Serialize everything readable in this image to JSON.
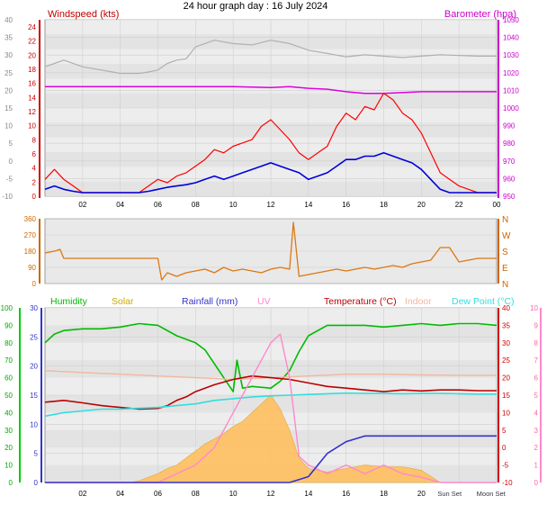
{
  "title": "24 hour graph day : 16 July 2024",
  "x_ticks": [
    "02",
    "04",
    "06",
    "08",
    "10",
    "12",
    "14",
    "16",
    "18",
    "20",
    "22",
    "00"
  ],
  "chart_data": [
    {
      "type": "line",
      "name": "wind-panel",
      "left_label": "Windspeed (kts)",
      "right_label": "Barometer (hpa)",
      "left_ticks_outer": [
        "40",
        "35",
        "30",
        "25",
        "20",
        "15",
        "10",
        "5",
        "0",
        "-5",
        "-10"
      ],
      "left_ticks_inner": [
        "24",
        "22",
        "20",
        "18",
        "16",
        "14",
        "12",
        "10",
        "8",
        "6",
        "4",
        "2",
        "0"
      ],
      "right_ticks": [
        "1050",
        "1040",
        "1030",
        "1020",
        "1010",
        "1000",
        "990",
        "980",
        "970",
        "960",
        "950"
      ],
      "ylim_wind": [
        0,
        25
      ],
      "ylim_baro": [
        947,
        1050
      ],
      "series": [
        {
          "key": "baro",
          "color": "#dd00dd",
          "x": [
            0,
            2,
            6,
            10,
            12,
            13,
            14,
            15,
            16,
            17,
            18,
            20,
            22,
            24
          ],
          "y": [
            1011,
            1011,
            1011,
            1011,
            1010.5,
            1011,
            1010,
            1009.5,
            1008,
            1007,
            1007,
            1008,
            1008,
            1008
          ]
        },
        {
          "key": "temp_grey",
          "color": "#b0b0b0",
          "x": [
            0,
            0.5,
            1,
            2,
            4,
            5,
            5.5,
            6,
            6.5,
            7,
            7.5,
            8,
            9,
            10,
            11,
            12,
            13,
            13.5,
            14,
            15,
            16,
            17,
            18,
            19,
            20,
            21,
            22,
            23,
            24
          ],
          "y": [
            19,
            19.5,
            20,
            19,
            18,
            18,
            18.2,
            18.5,
            19.5,
            20,
            20.2,
            22,
            23,
            22.5,
            22.3,
            23,
            22.5,
            22,
            21.5,
            21,
            20.5,
            20.8,
            20.6,
            20.4,
            20.6,
            20.8,
            20.7,
            20.6,
            20.6
          ]
        },
        {
          "key": "gust",
          "color": "#ff0000",
          "x": [
            0,
            0.5,
            1,
            1.5,
            2,
            3,
            4,
            5,
            5.5,
            6,
            6.5,
            7,
            7.5,
            8,
            8.5,
            9,
            9.5,
            10,
            10.5,
            11,
            11.5,
            12,
            12.5,
            13,
            13.5,
            14,
            14.5,
            15,
            15.5,
            16,
            16.5,
            17,
            17.5,
            18,
            18.5,
            19,
            19.5,
            20,
            20.5,
            21,
            21.5,
            22,
            22.5,
            23,
            24
          ],
          "y": [
            2,
            3.5,
            2,
            1,
            0,
            0,
            0,
            0,
            1,
            2,
            1.5,
            2.5,
            3,
            4,
            5,
            6.5,
            6,
            7,
            7.5,
            8,
            10,
            11,
            9.5,
            8,
            6,
            5,
            6,
            7,
            10,
            12,
            11,
            13,
            12.5,
            15,
            14,
            12,
            11,
            9,
            6,
            3,
            2,
            1,
            0.5,
            0,
            0
          ]
        },
        {
          "key": "wind",
          "color": "#0000dd",
          "x": [
            0,
            0.5,
            1,
            1.5,
            2,
            3,
            4,
            5,
            5.5,
            6,
            6.5,
            7,
            7.5,
            8,
            8.5,
            9,
            9.5,
            10,
            10.5,
            11,
            11.5,
            12,
            12.5,
            13,
            13.5,
            14,
            14.5,
            15,
            15.5,
            16,
            16.5,
            17,
            17.5,
            18,
            18.5,
            19,
            19.5,
            20,
            20.5,
            21,
            21.5,
            22,
            22.5,
            23,
            24
          ],
          "y": [
            0.5,
            1,
            0.5,
            0.2,
            0,
            0,
            0,
            0,
            0.2,
            0.5,
            0.8,
            1,
            1.2,
            1.5,
            2,
            2.5,
            2,
            2.5,
            3,
            3.5,
            4,
            4.5,
            4,
            3.5,
            3,
            2,
            2.5,
            3,
            4,
            5,
            5,
            5.5,
            5.5,
            6,
            5.5,
            5,
            4.5,
            3.5,
            2,
            0.5,
            0,
            0,
            0,
            0,
            0
          ]
        }
      ]
    },
    {
      "type": "line",
      "name": "direction-panel",
      "left_ticks": [
        "360",
        "270",
        "180",
        "90",
        "0"
      ],
      "right_ticks": [
        "N",
        "W",
        "S",
        "E",
        "N"
      ],
      "ylim": [
        0,
        360
      ],
      "series": [
        {
          "key": "dir",
          "color": "#dd7711",
          "x": [
            0,
            0.5,
            0.8,
            1,
            4,
            5,
            6,
            6.2,
            6.5,
            7,
            7.5,
            8,
            8.5,
            9,
            9.5,
            10,
            10.5,
            11,
            11.5,
            12,
            12.5,
            13,
            13.2,
            13.5,
            14,
            14.5,
            15,
            15.5,
            16,
            16.5,
            17,
            17.5,
            18,
            18.5,
            19,
            19.5,
            20,
            20.5,
            21,
            21.5,
            22,
            23,
            24
          ],
          "y": [
            170,
            180,
            190,
            140,
            140,
            140,
            140,
            20,
            60,
            40,
            60,
            70,
            80,
            60,
            90,
            70,
            80,
            70,
            60,
            80,
            90,
            80,
            340,
            40,
            50,
            60,
            70,
            80,
            70,
            80,
            90,
            80,
            90,
            100,
            90,
            110,
            120,
            130,
            200,
            200,
            120,
            140,
            140
          ]
        }
      ]
    },
    {
      "type": "area",
      "name": "environment-panel",
      "legend": [
        {
          "label": "Humidity",
          "color": "#00bb00"
        },
        {
          "label": "Solar",
          "color": "#ccaa00"
        },
        {
          "label": "Rainfall (mm)",
          "color": "#3333cc"
        },
        {
          "label": "UV",
          "color": "#ff88cc"
        },
        {
          "label": "Temperature (°C)",
          "color": "#bb0000"
        },
        {
          "label": "Indoor",
          "color": "#f0b8a0"
        },
        {
          "label": "Dew Point (°C)",
          "color": "#33dddd"
        }
      ],
      "left_ticks_outer": [
        "100",
        "90",
        "80",
        "70",
        "60",
        "50",
        "40",
        "30",
        "20",
        "10",
        "0"
      ],
      "left_ticks_inner": [
        "30",
        "25",
        "20",
        "15",
        "10",
        "5",
        "0"
      ],
      "right_ticks_temp": [
        "40",
        "35",
        "30",
        "25",
        "20",
        "15",
        "10",
        "5",
        "0",
        "-5",
        "-10"
      ],
      "right_ticks_uv": [
        "10",
        "9",
        "8",
        "7",
        "6",
        "5",
        "4",
        "3",
        "2",
        "1",
        "0"
      ],
      "x_annotations": [
        "Sun Set",
        "Moon Set"
      ],
      "ylim_humidity": [
        0,
        100
      ],
      "ylim_temp": [
        -10,
        40
      ],
      "ylim_rain": [
        0,
        30
      ],
      "series": [
        {
          "key": "solar",
          "color": "#ffc060",
          "x": [
            0,
            4.5,
            5,
            5.5,
            6,
            6.5,
            7,
            7.5,
            8,
            8.5,
            9,
            9.5,
            10,
            10.5,
            11,
            11.5,
            12,
            12.5,
            13,
            13.5,
            14,
            14.5,
            15,
            15.5,
            16,
            17,
            18,
            19,
            20,
            21,
            24
          ],
          "y": [
            0,
            0,
            1,
            3,
            5,
            8,
            10,
            14,
            18,
            22,
            25,
            28,
            32,
            35,
            40,
            45,
            50,
            42,
            30,
            14,
            8,
            7,
            6,
            7,
            8,
            10,
            9,
            9,
            7,
            0,
            0
          ]
        },
        {
          "key": "humidity",
          "color": "#00bb00",
          "x": [
            0,
            0.5,
            1,
            2,
            3,
            4,
            5,
            6,
            7,
            8,
            8.5,
            9,
            9.5,
            10,
            10.2,
            10.5,
            11,
            12,
            12.5,
            13,
            13.5,
            14,
            15,
            16,
            17,
            18,
            19,
            20,
            21,
            22,
            23,
            24
          ],
          "y": [
            80,
            85,
            87,
            88,
            88,
            89,
            91,
            90,
            84,
            80,
            76,
            68,
            60,
            52,
            70,
            54,
            55,
            54,
            58,
            64,
            75,
            84,
            90,
            90,
            90,
            89,
            90,
            91,
            90,
            91,
            91,
            90
          ]
        },
        {
          "key": "indoor",
          "color": "#f0b8a0",
          "x": [
            0,
            2,
            4,
            6,
            8,
            10,
            12,
            14,
            16,
            18,
            20,
            22,
            24
          ],
          "y": [
            22,
            21.5,
            21,
            20.5,
            20,
            19.5,
            20,
            20.5,
            21,
            21,
            20.8,
            20.7,
            20.7
          ]
        },
        {
          "key": "temp",
          "color": "#bb0000",
          "x": [
            0,
            1,
            2,
            3,
            4,
            5,
            6,
            6.5,
            7,
            7.5,
            8,
            9,
            10,
            11,
            12,
            13,
            14,
            15,
            16,
            17,
            18,
            19,
            20,
            21,
            22,
            23,
            24
          ],
          "y": [
            13,
            13.5,
            12.8,
            12,
            11.5,
            11,
            11.2,
            12,
            13.5,
            14.5,
            16,
            18,
            19.5,
            20.5,
            20,
            19.5,
            18.5,
            17.5,
            17,
            16.5,
            16,
            16.5,
            16.2,
            16.5,
            16.5,
            16.3,
            16.3
          ]
        },
        {
          "key": "dew",
          "color": "#33dddd",
          "x": [
            0,
            1,
            2,
            3,
            4,
            5,
            6,
            7,
            8,
            9,
            10,
            11,
            12,
            13,
            14,
            15,
            16,
            17,
            18,
            19,
            20,
            21,
            22,
            23,
            24
          ],
          "y": [
            9,
            10,
            10.5,
            11,
            11,
            11.3,
            11.5,
            12,
            12.5,
            13.5,
            14,
            14.5,
            14.8,
            15,
            15.2,
            15.4,
            15.6,
            15.5,
            15.5,
            15.4,
            15.5,
            15.5,
            15.4,
            15.3,
            15.3
          ]
        },
        {
          "key": "uv",
          "color": "#ff88cc",
          "x": [
            0,
            6,
            7,
            8,
            9,
            9.5,
            10,
            10.5,
            11,
            11.5,
            12,
            12.5,
            13,
            13.5,
            14,
            15,
            16,
            17,
            18,
            19,
            20,
            21,
            24
          ],
          "y": [
            0,
            0,
            0.5,
            1,
            2,
            3,
            4,
            5,
            6,
            7,
            8,
            8.5,
            6,
            1.5,
            1,
            0.5,
            1,
            0.5,
            1,
            0.5,
            0.3,
            0,
            0
          ]
        },
        {
          "key": "rain",
          "color": "#3333cc",
          "x": [
            0,
            13,
            14,
            14.5,
            15,
            15.5,
            16,
            16.5,
            17,
            18,
            20,
            22,
            24
          ],
          "y": [
            0,
            0,
            1,
            3,
            5,
            6,
            7,
            7.5,
            8,
            8,
            8,
            8,
            8
          ]
        }
      ]
    }
  ]
}
